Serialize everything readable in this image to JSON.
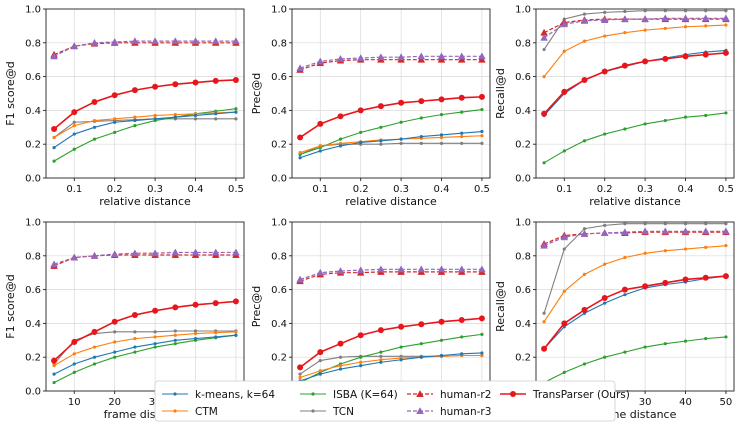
{
  "colors": {
    "kmeans": "#1f77b4",
    "ctm": "#ff7f0e",
    "isba": "#2ca02c",
    "tcn": "#7f7f7f",
    "human_r2": "#d62728",
    "human_r3": "#9467bd",
    "transparser": "#e8161c"
  },
  "legend": [
    {
      "key": "kmeans",
      "label": "k-means, k=64"
    },
    {
      "key": "ctm",
      "label": "CTM"
    },
    {
      "key": "isba",
      "label": "ISBA (K=64)"
    },
    {
      "key": "tcn",
      "label": "TCN"
    },
    {
      "key": "human_r2",
      "label": "human-r2"
    },
    {
      "key": "human_r3",
      "label": "human-r3"
    },
    {
      "key": "transparser",
      "label": "TransParser (Ours)"
    }
  ],
  "chart_data": [
    {
      "type": "line",
      "ylabel": "F1 score@d",
      "xlabel": "relative distance",
      "xlim": [
        0.03,
        0.52
      ],
      "ylim": [
        0.0,
        1.0
      ],
      "xticks": [
        "0.1",
        "0.2",
        "0.3",
        "0.4",
        "0.5"
      ],
      "xtick_values": [
        0.1,
        0.2,
        0.3,
        0.4,
        0.5
      ],
      "yticks": [
        "0.0",
        "0.2",
        "0.4",
        "0.6",
        "0.8",
        "1.0"
      ],
      "ytick_values": [
        0.0,
        0.2,
        0.4,
        0.6,
        0.8,
        1.0
      ],
      "x": [
        0.05,
        0.1,
        0.15,
        0.2,
        0.25,
        0.3,
        0.35,
        0.4,
        0.45,
        0.5
      ],
      "series": [
        {
          "key": "kmeans",
          "values": [
            0.18,
            0.26,
            0.3,
            0.33,
            0.34,
            0.35,
            0.36,
            0.37,
            0.38,
            0.39
          ]
        },
        {
          "key": "ctm",
          "values": [
            0.24,
            0.31,
            0.34,
            0.35,
            0.36,
            0.37,
            0.375,
            0.38,
            0.385,
            0.39
          ]
        },
        {
          "key": "isba",
          "values": [
            0.1,
            0.17,
            0.23,
            0.27,
            0.31,
            0.34,
            0.36,
            0.38,
            0.395,
            0.41
          ]
        },
        {
          "key": "tcn",
          "values": [
            0.24,
            0.33,
            0.335,
            0.34,
            0.345,
            0.35,
            0.35,
            0.35,
            0.35,
            0.35
          ]
        },
        {
          "key": "human_r2",
          "values": [
            0.73,
            0.78,
            0.795,
            0.8,
            0.8,
            0.8,
            0.8,
            0.8,
            0.8,
            0.8
          ]
        },
        {
          "key": "human_r3",
          "values": [
            0.72,
            0.78,
            0.8,
            0.805,
            0.81,
            0.81,
            0.81,
            0.81,
            0.81,
            0.81
          ]
        },
        {
          "key": "transparser",
          "values": [
            0.29,
            0.39,
            0.45,
            0.49,
            0.52,
            0.54,
            0.555,
            0.565,
            0.575,
            0.58
          ]
        }
      ]
    },
    {
      "type": "line",
      "ylabel": "Prec@d",
      "xlabel": "relative distance",
      "xlim": [
        0.03,
        0.52
      ],
      "ylim": [
        0.0,
        1.0
      ],
      "xticks": [
        "0.1",
        "0.2",
        "0.3",
        "0.4",
        "0.5"
      ],
      "xtick_values": [
        0.1,
        0.2,
        0.3,
        0.4,
        0.5
      ],
      "yticks": [
        "0.0",
        "0.2",
        "0.4",
        "0.6",
        "0.8",
        "1.0"
      ],
      "ytick_values": [
        0.0,
        0.2,
        0.4,
        0.6,
        0.8,
        1.0
      ],
      "x": [
        0.05,
        0.1,
        0.15,
        0.2,
        0.25,
        0.3,
        0.35,
        0.4,
        0.45,
        0.5
      ],
      "series": [
        {
          "key": "kmeans",
          "values": [
            0.12,
            0.16,
            0.19,
            0.21,
            0.22,
            0.23,
            0.245,
            0.255,
            0.265,
            0.275
          ]
        },
        {
          "key": "ctm",
          "values": [
            0.15,
            0.19,
            0.205,
            0.215,
            0.225,
            0.23,
            0.235,
            0.24,
            0.245,
            0.25
          ]
        },
        {
          "key": "isba",
          "values": [
            0.14,
            0.18,
            0.23,
            0.27,
            0.3,
            0.33,
            0.355,
            0.375,
            0.39,
            0.405
          ]
        },
        {
          "key": "tcn",
          "values": [
            0.14,
            0.19,
            0.2,
            0.2,
            0.2,
            0.205,
            0.205,
            0.205,
            0.205,
            0.205
          ]
        },
        {
          "key": "human_r2",
          "values": [
            0.64,
            0.68,
            0.695,
            0.7,
            0.7,
            0.7,
            0.7,
            0.7,
            0.7,
            0.7
          ]
        },
        {
          "key": "human_r3",
          "values": [
            0.65,
            0.69,
            0.705,
            0.71,
            0.715,
            0.715,
            0.72,
            0.72,
            0.72,
            0.72
          ]
        },
        {
          "key": "transparser",
          "values": [
            0.24,
            0.32,
            0.365,
            0.4,
            0.425,
            0.445,
            0.455,
            0.465,
            0.475,
            0.48
          ]
        }
      ]
    },
    {
      "type": "line",
      "ylabel": "Recall@d",
      "xlabel": "relative distance",
      "xlim": [
        0.03,
        0.52
      ],
      "ylim": [
        0.0,
        1.0
      ],
      "xticks": [
        "0.1",
        "0.2",
        "0.3",
        "0.4",
        "0.5"
      ],
      "xtick_values": [
        0.1,
        0.2,
        0.3,
        0.4,
        0.5
      ],
      "yticks": [
        "0.0",
        "0.2",
        "0.4",
        "0.6",
        "0.8",
        "1.0"
      ],
      "ytick_values": [
        0.0,
        0.2,
        0.4,
        0.6,
        0.8,
        1.0
      ],
      "x": [
        0.05,
        0.1,
        0.15,
        0.2,
        0.25,
        0.3,
        0.35,
        0.4,
        0.45,
        0.5
      ],
      "series": [
        {
          "key": "kmeans",
          "values": [
            0.37,
            0.5,
            0.58,
            0.63,
            0.66,
            0.69,
            0.71,
            0.73,
            0.745,
            0.755
          ]
        },
        {
          "key": "ctm",
          "values": [
            0.6,
            0.75,
            0.81,
            0.84,
            0.86,
            0.875,
            0.885,
            0.895,
            0.9,
            0.905
          ]
        },
        {
          "key": "isba",
          "values": [
            0.09,
            0.16,
            0.22,
            0.26,
            0.29,
            0.32,
            0.34,
            0.36,
            0.37,
            0.385
          ]
        },
        {
          "key": "tcn",
          "values": [
            0.76,
            0.94,
            0.97,
            0.98,
            0.985,
            0.99,
            0.99,
            0.99,
            0.99,
            0.99
          ]
        },
        {
          "key": "human_r2",
          "values": [
            0.86,
            0.92,
            0.935,
            0.94,
            0.94,
            0.94,
            0.94,
            0.94,
            0.94,
            0.94
          ]
        },
        {
          "key": "human_r3",
          "values": [
            0.83,
            0.91,
            0.93,
            0.935,
            0.94,
            0.94,
            0.945,
            0.945,
            0.945,
            0.945
          ]
        },
        {
          "key": "transparser",
          "values": [
            0.38,
            0.51,
            0.58,
            0.63,
            0.665,
            0.69,
            0.705,
            0.72,
            0.73,
            0.74
          ]
        }
      ]
    },
    {
      "type": "line",
      "ylabel": "F1 score@d",
      "xlabel": "frame distance",
      "xlim": [
        3,
        52
      ],
      "ylim": [
        0.0,
        1.0
      ],
      "xticks": [
        "10",
        "20",
        "30",
        "40",
        "50"
      ],
      "xtick_values": [
        10,
        20,
        30,
        40,
        50
      ],
      "yticks": [
        "0.0",
        "0.2",
        "0.4",
        "0.6",
        "0.8",
        "1.0"
      ],
      "ytick_values": [
        0.0,
        0.2,
        0.4,
        0.6,
        0.8,
        1.0
      ],
      "x": [
        5,
        10,
        15,
        20,
        25,
        30,
        35,
        40,
        45,
        50
      ],
      "series": [
        {
          "key": "kmeans",
          "values": [
            0.1,
            0.16,
            0.2,
            0.23,
            0.26,
            0.28,
            0.3,
            0.31,
            0.32,
            0.33
          ]
        },
        {
          "key": "ctm",
          "values": [
            0.15,
            0.22,
            0.26,
            0.29,
            0.31,
            0.32,
            0.33,
            0.34,
            0.345,
            0.35
          ]
        },
        {
          "key": "isba",
          "values": [
            0.05,
            0.11,
            0.16,
            0.2,
            0.23,
            0.26,
            0.28,
            0.3,
            0.315,
            0.33
          ]
        },
        {
          "key": "tcn",
          "values": [
            0.16,
            0.3,
            0.34,
            0.35,
            0.35,
            0.35,
            0.355,
            0.355,
            0.355,
            0.355
          ]
        },
        {
          "key": "human_r2",
          "values": [
            0.74,
            0.79,
            0.8,
            0.805,
            0.805,
            0.805,
            0.805,
            0.805,
            0.805,
            0.805
          ]
        },
        {
          "key": "human_r3",
          "values": [
            0.75,
            0.79,
            0.8,
            0.81,
            0.815,
            0.815,
            0.82,
            0.82,
            0.82,
            0.82
          ]
        },
        {
          "key": "transparser",
          "values": [
            0.18,
            0.29,
            0.35,
            0.41,
            0.45,
            0.475,
            0.495,
            0.51,
            0.52,
            0.53
          ]
        }
      ]
    },
    {
      "type": "line",
      "ylabel": "Prec@d",
      "xlabel": "frame distance",
      "xlim": [
        3,
        52
      ],
      "ylim": [
        0.0,
        1.0
      ],
      "xticks": [
        "10",
        "20",
        "30",
        "40",
        "50"
      ],
      "xtick_values": [
        10,
        20,
        30,
        40,
        50
      ],
      "yticks": [
        "0.0",
        "0.2",
        "0.4",
        "0.6",
        "0.8",
        "1.0"
      ],
      "ytick_values": [
        0.0,
        0.2,
        0.4,
        0.6,
        0.8,
        1.0
      ],
      "x": [
        5,
        10,
        15,
        20,
        25,
        30,
        35,
        40,
        45,
        50
      ],
      "series": [
        {
          "key": "kmeans",
          "values": [
            0.06,
            0.1,
            0.13,
            0.15,
            0.17,
            0.185,
            0.2,
            0.21,
            0.22,
            0.225
          ]
        },
        {
          "key": "ctm",
          "values": [
            0.08,
            0.12,
            0.15,
            0.17,
            0.185,
            0.195,
            0.2,
            0.205,
            0.21,
            0.21
          ]
        },
        {
          "key": "isba",
          "values": [
            0.05,
            0.11,
            0.16,
            0.2,
            0.23,
            0.26,
            0.28,
            0.3,
            0.32,
            0.335
          ]
        },
        {
          "key": "tcn",
          "values": [
            0.1,
            0.18,
            0.2,
            0.205,
            0.205,
            0.205,
            0.205,
            0.205,
            0.21,
            0.21
          ]
        },
        {
          "key": "human_r2",
          "values": [
            0.65,
            0.69,
            0.7,
            0.7,
            0.705,
            0.705,
            0.705,
            0.705,
            0.705,
            0.705
          ]
        },
        {
          "key": "human_r3",
          "values": [
            0.66,
            0.7,
            0.71,
            0.715,
            0.72,
            0.72,
            0.72,
            0.72,
            0.72,
            0.72
          ]
        },
        {
          "key": "transparser",
          "values": [
            0.14,
            0.23,
            0.28,
            0.33,
            0.36,
            0.38,
            0.395,
            0.41,
            0.42,
            0.43
          ]
        }
      ]
    },
    {
      "type": "line",
      "ylabel": "Recall@d",
      "xlabel": "frame distance",
      "xlim": [
        3,
        52
      ],
      "ylim": [
        0.0,
        1.0
      ],
      "xticks": [
        "10",
        "20",
        "30",
        "40",
        "50"
      ],
      "xtick_values": [
        10,
        20,
        30,
        40,
        50
      ],
      "yticks": [
        "0.0",
        "0.2",
        "0.4",
        "0.6",
        "0.8",
        "1.0"
      ],
      "ytick_values": [
        0.0,
        0.2,
        0.4,
        0.6,
        0.8,
        1.0
      ],
      "x": [
        5,
        10,
        15,
        20,
        25,
        30,
        35,
        40,
        45,
        50
      ],
      "series": [
        {
          "key": "kmeans",
          "values": [
            0.25,
            0.38,
            0.46,
            0.52,
            0.57,
            0.61,
            0.63,
            0.645,
            0.665,
            0.68
          ]
        },
        {
          "key": "ctm",
          "values": [
            0.41,
            0.59,
            0.69,
            0.75,
            0.79,
            0.815,
            0.83,
            0.84,
            0.85,
            0.86
          ]
        },
        {
          "key": "isba",
          "values": [
            0.05,
            0.11,
            0.16,
            0.2,
            0.23,
            0.26,
            0.28,
            0.295,
            0.31,
            0.32
          ]
        },
        {
          "key": "tcn",
          "values": [
            0.46,
            0.84,
            0.96,
            0.98,
            0.99,
            0.99,
            0.99,
            0.99,
            0.99,
            0.99
          ]
        },
        {
          "key": "human_r2",
          "values": [
            0.87,
            0.92,
            0.93,
            0.935,
            0.935,
            0.94,
            0.94,
            0.94,
            0.94,
            0.94
          ]
        },
        {
          "key": "human_r3",
          "values": [
            0.86,
            0.91,
            0.93,
            0.935,
            0.94,
            0.945,
            0.945,
            0.945,
            0.945,
            0.945
          ]
        },
        {
          "key": "transparser",
          "values": [
            0.25,
            0.4,
            0.48,
            0.55,
            0.6,
            0.62,
            0.64,
            0.66,
            0.67,
            0.68
          ]
        }
      ]
    }
  ]
}
